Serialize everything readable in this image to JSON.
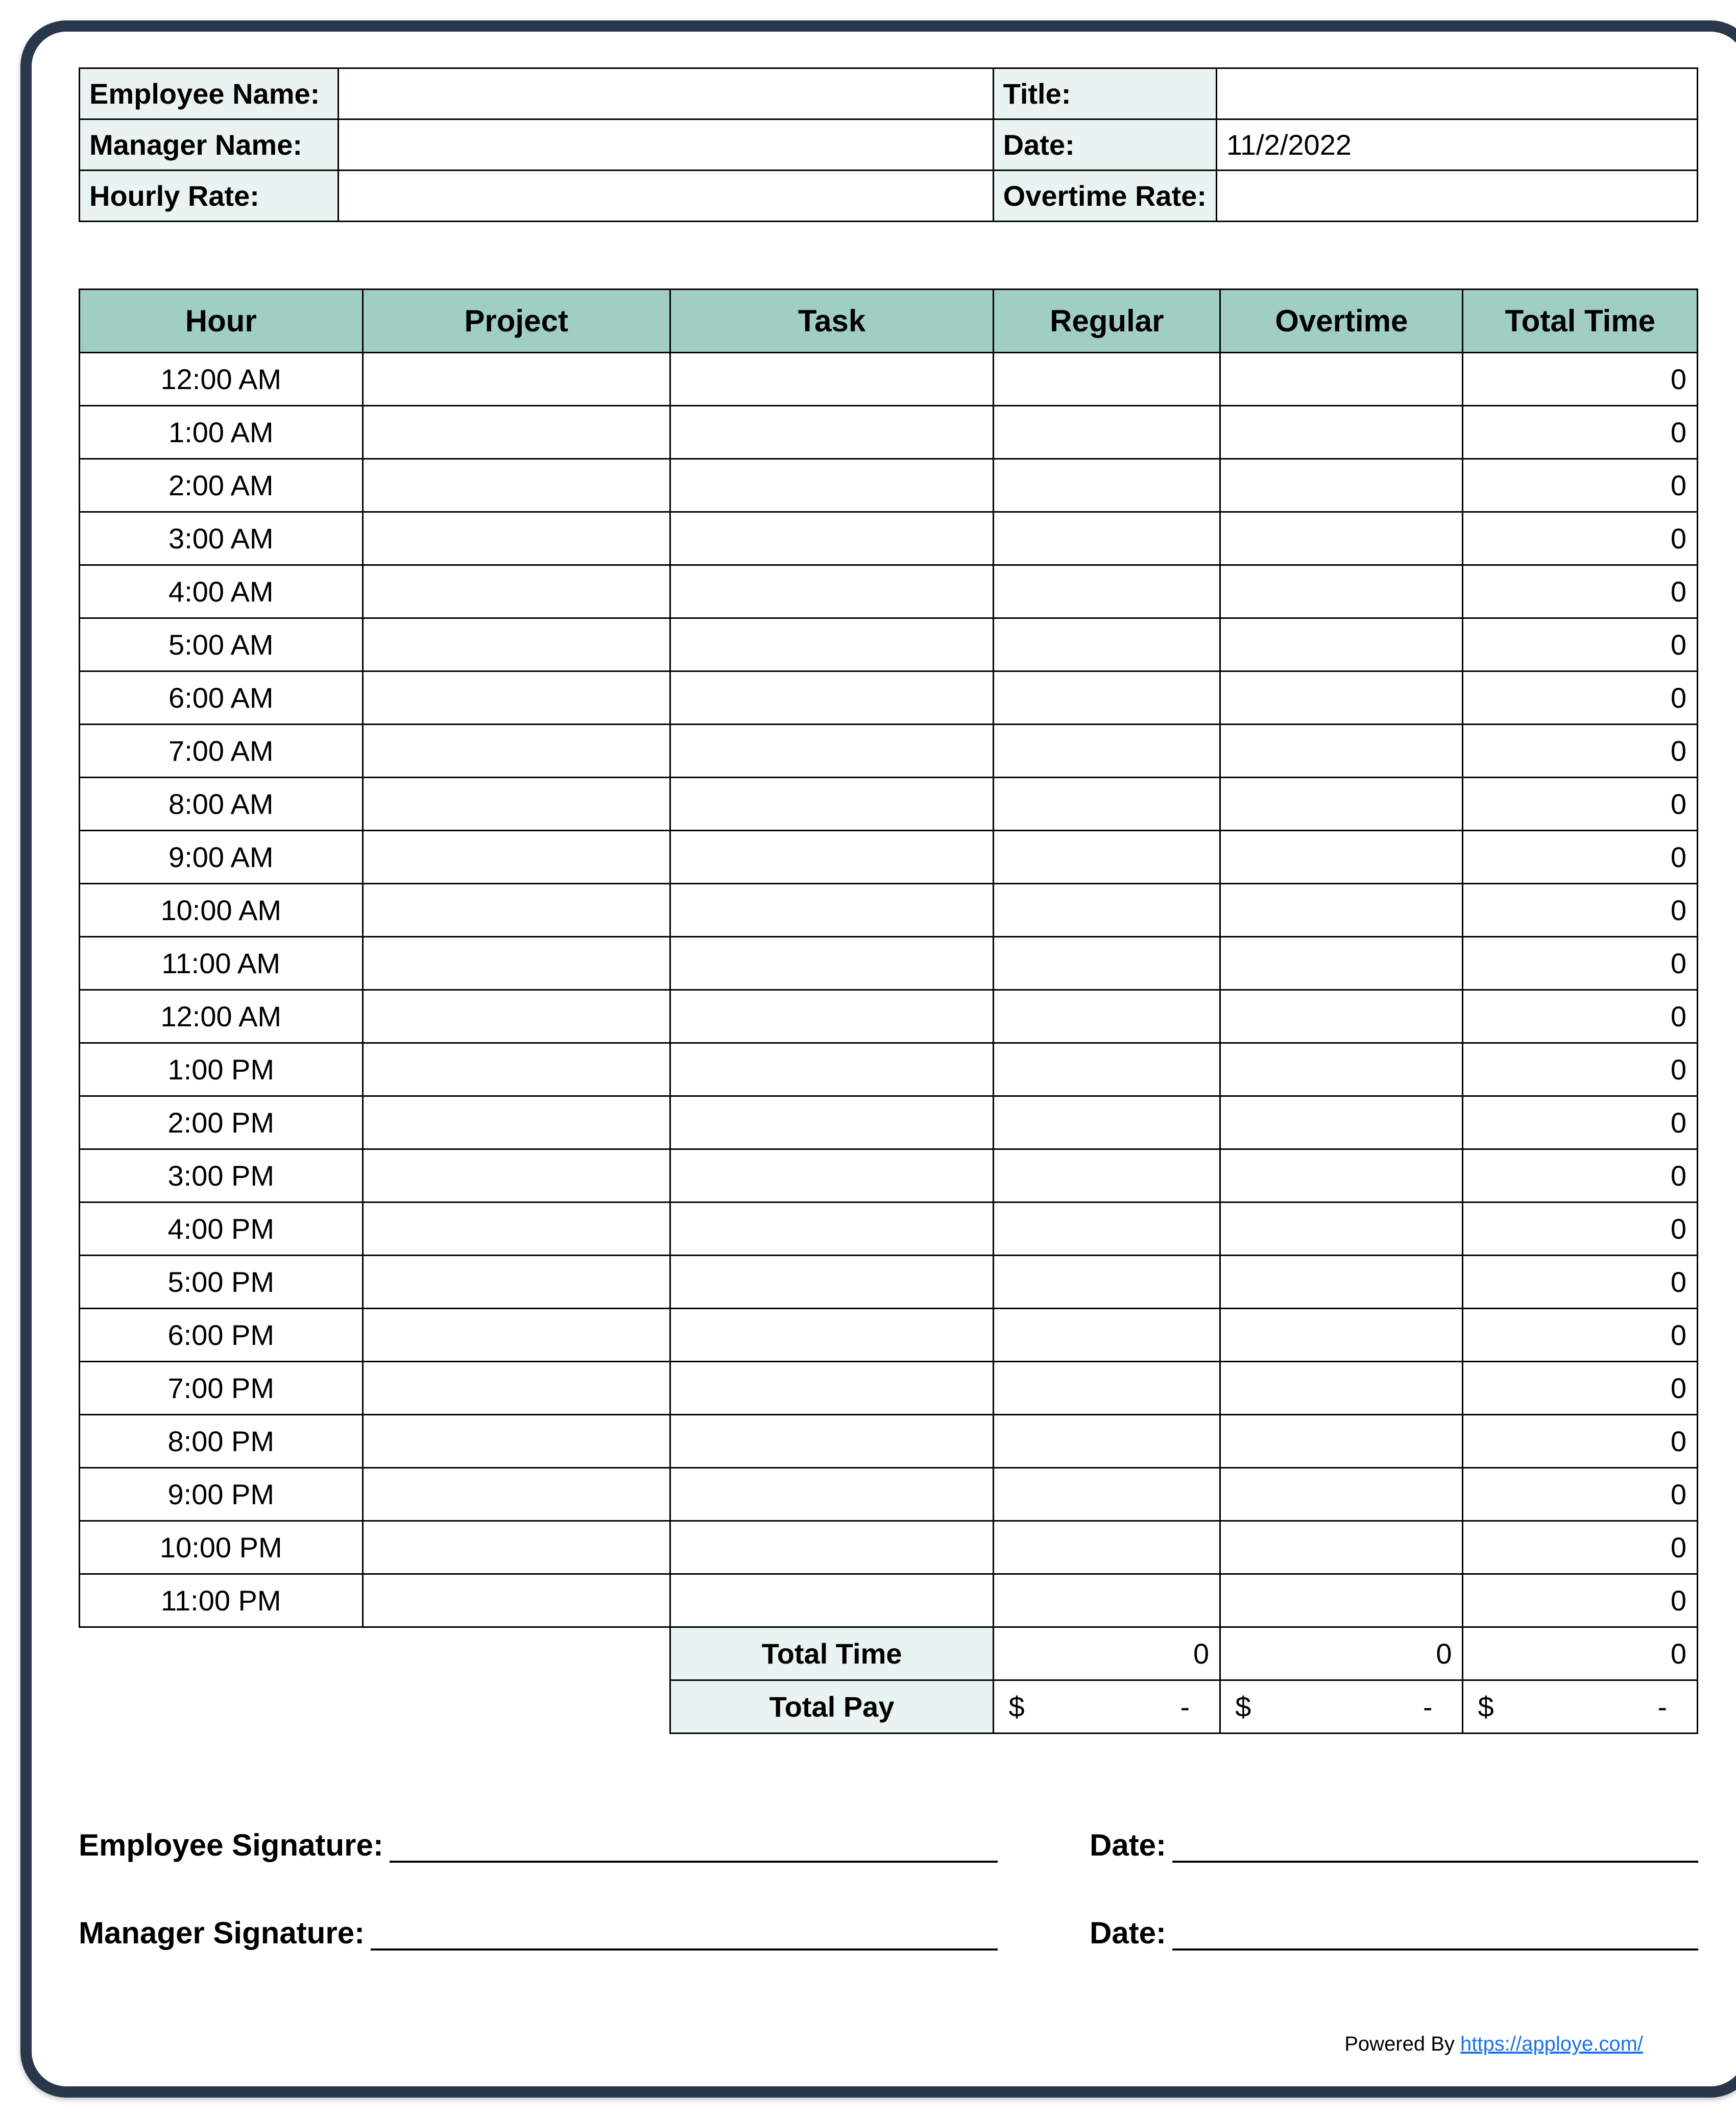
{
  "colors": {
    "page_border": "#28384a",
    "cell_border": "#000000",
    "header_teal": "#a0cec3",
    "pale_teal": "#e9f3f1",
    "link_blue": "#1a73e8",
    "background": "#ffffff"
  },
  "info": {
    "labels": {
      "employee_name": "Employee Name:",
      "title": "Title:",
      "manager_name": "Manager Name:",
      "date": "Date:",
      "hourly_rate": "Hourly Rate:",
      "overtime_rate": "Overtime Rate:"
    },
    "values": {
      "employee_name": "",
      "title": "",
      "manager_name": "",
      "date": "11/2/2022",
      "hourly_rate": "",
      "overtime_rate": ""
    },
    "column_widths_pct": [
      16,
      41,
      13,
      30
    ]
  },
  "timesheet": {
    "headers": [
      "Hour",
      "Project",
      "Task",
      "Regular",
      "Overtime",
      "Total Time"
    ],
    "column_widths_pct": [
      17.5,
      19,
      20,
      14,
      15,
      14.5
    ],
    "rows": [
      {
        "hour": "12:00 AM",
        "project": "",
        "task": "",
        "regular": "",
        "overtime": "",
        "total": "0"
      },
      {
        "hour": "1:00 AM",
        "project": "",
        "task": "",
        "regular": "",
        "overtime": "",
        "total": "0"
      },
      {
        "hour": "2:00 AM",
        "project": "",
        "task": "",
        "regular": "",
        "overtime": "",
        "total": "0"
      },
      {
        "hour": "3:00 AM",
        "project": "",
        "task": "",
        "regular": "",
        "overtime": "",
        "total": "0"
      },
      {
        "hour": "4:00 AM",
        "project": "",
        "task": "",
        "regular": "",
        "overtime": "",
        "total": "0"
      },
      {
        "hour": "5:00 AM",
        "project": "",
        "task": "",
        "regular": "",
        "overtime": "",
        "total": "0"
      },
      {
        "hour": "6:00 AM",
        "project": "",
        "task": "",
        "regular": "",
        "overtime": "",
        "total": "0"
      },
      {
        "hour": "7:00 AM",
        "project": "",
        "task": "",
        "regular": "",
        "overtime": "",
        "total": "0"
      },
      {
        "hour": "8:00 AM",
        "project": "",
        "task": "",
        "regular": "",
        "overtime": "",
        "total": "0"
      },
      {
        "hour": "9:00 AM",
        "project": "",
        "task": "",
        "regular": "",
        "overtime": "",
        "total": "0"
      },
      {
        "hour": "10:00 AM",
        "project": "",
        "task": "",
        "regular": "",
        "overtime": "",
        "total": "0"
      },
      {
        "hour": "11:00 AM",
        "project": "",
        "task": "",
        "regular": "",
        "overtime": "",
        "total": "0"
      },
      {
        "hour": "12:00 AM",
        "project": "",
        "task": "",
        "regular": "",
        "overtime": "",
        "total": "0"
      },
      {
        "hour": "1:00 PM",
        "project": "",
        "task": "",
        "regular": "",
        "overtime": "",
        "total": "0"
      },
      {
        "hour": "2:00 PM",
        "project": "",
        "task": "",
        "regular": "",
        "overtime": "",
        "total": "0"
      },
      {
        "hour": "3:00 PM",
        "project": "",
        "task": "",
        "regular": "",
        "overtime": "",
        "total": "0"
      },
      {
        "hour": "4:00 PM",
        "project": "",
        "task": "",
        "regular": "",
        "overtime": "",
        "total": "0"
      },
      {
        "hour": "5:00 PM",
        "project": "",
        "task": "",
        "regular": "",
        "overtime": "",
        "total": "0"
      },
      {
        "hour": "6:00 PM",
        "project": "",
        "task": "",
        "regular": "",
        "overtime": "",
        "total": "0"
      },
      {
        "hour": "7:00 PM",
        "project": "",
        "task": "",
        "regular": "",
        "overtime": "",
        "total": "0"
      },
      {
        "hour": "8:00 PM",
        "project": "",
        "task": "",
        "regular": "",
        "overtime": "",
        "total": "0"
      },
      {
        "hour": "9:00 PM",
        "project": "",
        "task": "",
        "regular": "",
        "overtime": "",
        "total": "0"
      },
      {
        "hour": "10:00 PM",
        "project": "",
        "task": "",
        "regular": "",
        "overtime": "",
        "total": "0"
      },
      {
        "hour": "11:00 PM",
        "project": "",
        "task": "",
        "regular": "",
        "overtime": "",
        "total": "0"
      }
    ],
    "summary": {
      "total_time_label": "Total Time",
      "total_pay_label": "Total Pay",
      "total_regular": "0",
      "total_overtime": "0",
      "total_total": "0",
      "pay_currency": "$",
      "pay_dash": "-"
    }
  },
  "signatures": {
    "employee_label": "Employee Signature:",
    "manager_label": "Manager Signature:",
    "date_label": "Date:"
  },
  "footer": {
    "prefix": "Powered By ",
    "link_text": "https://apploye.com/"
  }
}
